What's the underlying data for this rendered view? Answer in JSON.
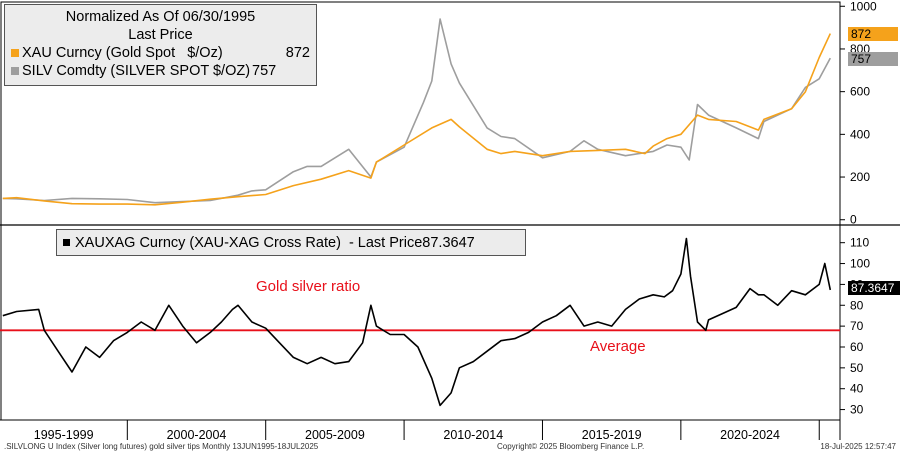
{
  "chart_data": [
    {
      "type": "line",
      "title": "Normalized As Of 06/30/1995",
      "subtitle": "Last Price",
      "ylim": [
        -20,
        1020
      ],
      "yticks": [
        0,
        200,
        400,
        600,
        800,
        1000
      ],
      "series": [
        {
          "name": "XAU Curncy (Gold Spot   $/Oz)",
          "last": "872",
          "color": "#f5a21b",
          "x": [
            1995.5,
            1996,
            1997,
            1998,
            1999,
            2000,
            2001,
            2002,
            2003,
            2004,
            2005,
            2006,
            2007,
            2008,
            2008.8,
            2009,
            2010,
            2011,
            2011.7,
            2012,
            2013,
            2013.5,
            2014,
            2015,
            2016,
            2017,
            2018,
            2018.7,
            2019,
            2019.5,
            2020,
            2020.6,
            2021,
            2022,
            2022.8,
            2023,
            2024,
            2024.5,
            2025,
            2025.4
          ],
          "values": [
            100,
            103,
            88,
            75,
            73,
            73,
            70,
            82,
            96,
            108,
            118,
            160,
            190,
            230,
            195,
            270,
            350,
            430,
            470,
            435,
            330,
            310,
            320,
            300,
            320,
            325,
            330,
            310,
            345,
            380,
            400,
            490,
            470,
            460,
            420,
            470,
            520,
            600,
            760,
            872
          ]
        },
        {
          "name": "SILV Comdty (SILVER SPOT $/OZ)",
          "last": "757",
          "color": "#9e9e9e",
          "x": [
            1995.5,
            1996,
            1997,
            1998,
            1999,
            2000,
            2001,
            2002,
            2003,
            2004,
            2004.5,
            2005,
            2006,
            2006.5,
            2007,
            2008,
            2008.8,
            2009,
            2010,
            2010.7,
            2011,
            2011.3,
            2011.7,
            2012,
            2013,
            2013.5,
            2014,
            2015,
            2016,
            2016.5,
            2017,
            2018,
            2019,
            2019.5,
            2020,
            2020.3,
            2020.6,
            2021,
            2022,
            2022.8,
            2023,
            2024,
            2024.5,
            2025,
            2025.4
          ],
          "values": [
            100,
            98,
            90,
            100,
            98,
            95,
            80,
            85,
            90,
            115,
            135,
            140,
            225,
            250,
            250,
            330,
            200,
            270,
            340,
            550,
            650,
            940,
            730,
            640,
            430,
            390,
            380,
            290,
            320,
            370,
            330,
            300,
            320,
            350,
            340,
            280,
            540,
            490,
            430,
            380,
            460,
            520,
            620,
            660,
            757
          ]
        }
      ]
    },
    {
      "type": "line",
      "title": "XAUXAG Curncy (XAU-XAG Cross Rate)  - Last Price",
      "last": "87.3647",
      "ylim": [
        25,
        118
      ],
      "yticks": [
        30,
        40,
        50,
        60,
        70,
        80,
        90,
        100,
        110
      ],
      "average": 68,
      "series": [
        {
          "name": "XAUXAG Curncy",
          "color": "#000000",
          "x": [
            1995.5,
            1996,
            1996.8,
            1997,
            1997.5,
            1998,
            1998.5,
            1999,
            1999.5,
            2000,
            2000.5,
            2001,
            2001.5,
            2002,
            2002.5,
            2003,
            2003.4,
            2003.8,
            2004,
            2004.5,
            2005,
            2005.5,
            2006,
            2006.5,
            2007,
            2007.5,
            2008,
            2008.5,
            2008.8,
            2009,
            2009.5,
            2010,
            2010.5,
            2011,
            2011.3,
            2011.7,
            2012,
            2012.5,
            2013,
            2013.5,
            2014,
            2014.5,
            2015,
            2015.5,
            2016,
            2016.5,
            2017,
            2017.5,
            2018,
            2018.5,
            2019,
            2019.4,
            2019.7,
            2020,
            2020.2,
            2020.35,
            2020.6,
            2020.9,
            2021,
            2021.5,
            2022,
            2022.5,
            2022.8,
            2023,
            2023.5,
            2024,
            2024.5,
            2025,
            2025.2,
            2025.4
          ],
          "values": [
            75,
            77,
            78,
            68,
            58,
            48,
            60,
            55,
            63,
            67,
            72,
            68,
            80,
            70,
            62,
            67,
            72,
            78,
            80,
            72,
            69,
            62,
            55,
            52,
            55,
            52,
            53,
            62,
            80,
            70,
            66,
            66,
            60,
            45,
            32,
            38,
            50,
            53,
            58,
            63,
            64,
            67,
            72,
            75,
            80,
            70,
            72,
            70,
            78,
            83,
            85,
            84,
            87,
            95,
            112,
            94,
            72,
            68,
            73,
            76,
            79,
            88,
            85,
            85,
            80,
            87,
            85,
            90,
            100,
            87.36
          ]
        }
      ]
    }
  ],
  "legend_top": {
    "title": "Normalized As Of 06/30/1995",
    "subtitle": "Last Price",
    "gold_label": "XAU Curncy (Gold Spot   $/Oz)",
    "gold_value": "872",
    "silver_label": "SILV Comdty (SILVER SPOT $/OZ)",
    "silver_value": "757"
  },
  "legend_bottom": {
    "label": "XAUXAG Curncy (XAU-XAG Cross Rate)  - Last Price",
    "value": "87.3647"
  },
  "annotations": {
    "ratio_label": "Gold silver ratio",
    "average_label": "Average"
  },
  "badges": {
    "gold": "872",
    "silver": "757",
    "ratio": "87.3647"
  },
  "x_eras": [
    "1995-1999",
    "2000-2004",
    "2005-2009",
    "2010-2014",
    "2015-2019",
    "2020-2024"
  ],
  "footer": {
    "left": ".SILVLONG U Index (Silver long futures) gold silver tips  Monthly 13JUN1995-18JUL2025",
    "center": "Copyright© 2025 Bloomberg Finance L.P.",
    "right": "18-Jul-2025 12:57:47"
  },
  "colors": {
    "gold": "#f5a21b",
    "silver": "#9e9e9e",
    "ratio": "#000000",
    "average": "#e8101a"
  }
}
